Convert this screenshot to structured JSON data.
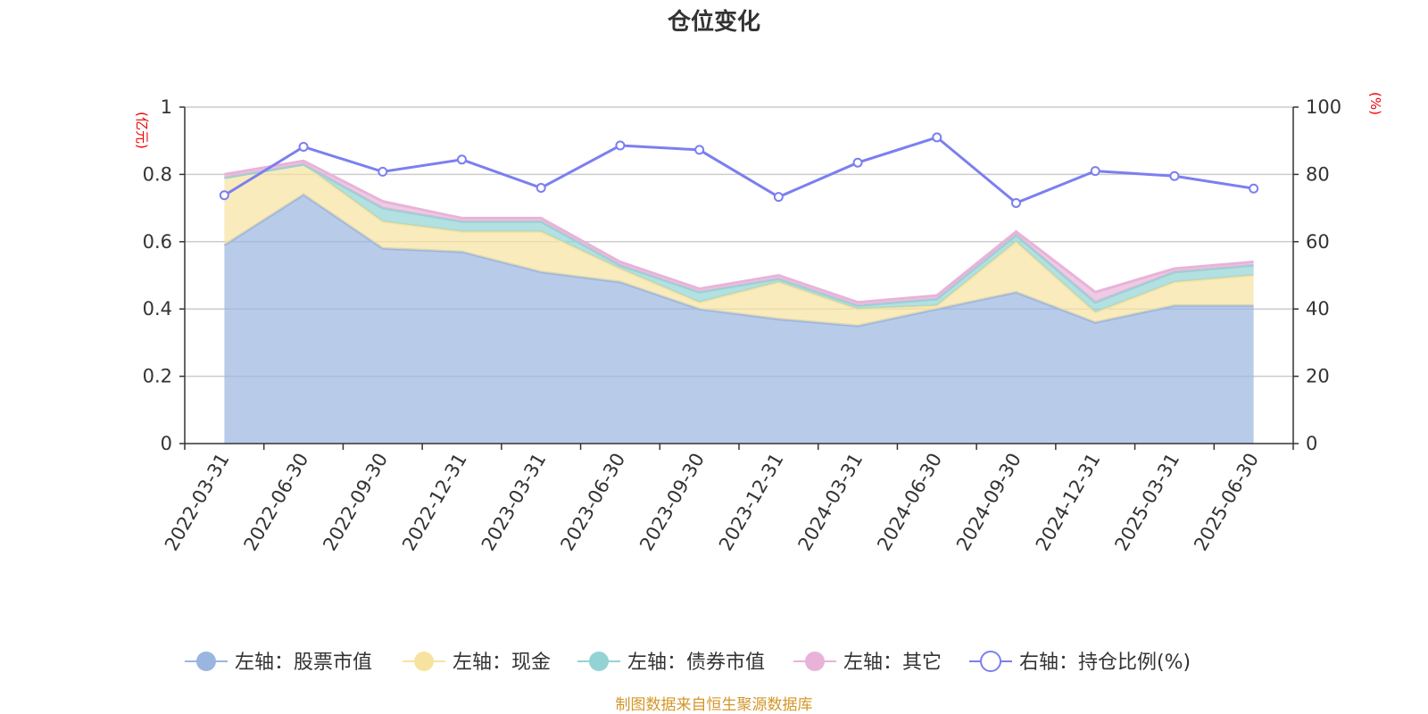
{
  "chart_data": {
    "type": "area",
    "title": "仓位变化",
    "x": [
      "2022-03-31",
      "2022-06-30",
      "2022-09-30",
      "2022-12-31",
      "2023-03-31",
      "2023-06-30",
      "2023-09-30",
      "2023-12-31",
      "2024-03-31",
      "2024-06-30",
      "2024-09-30",
      "2024-12-31",
      "2025-03-31",
      "2025-06-30"
    ],
    "left_axis": {
      "unit": "(亿元)",
      "ylim": [
        0,
        1
      ],
      "ticks": [
        "0",
        "0.2",
        "0.4",
        "0.6",
        "0.8",
        "1"
      ]
    },
    "right_axis": {
      "unit": "(%)",
      "ylim": [
        0,
        100
      ],
      "ticks": [
        "0",
        "20",
        "40",
        "60",
        "80",
        "100"
      ]
    },
    "stacked": true,
    "series": [
      {
        "name": "左轴：股票市值",
        "axis": "left",
        "type": "area",
        "color": "#9ab5e0",
        "values": [
          0.59,
          0.74,
          0.58,
          0.57,
          0.51,
          0.48,
          0.4,
          0.37,
          0.35,
          0.4,
          0.45,
          0.36,
          0.41,
          0.41
        ]
      },
      {
        "name": "左轴：现金",
        "axis": "left",
        "type": "area",
        "color": "#f7e3a0",
        "values": [
          0.2,
          0.09,
          0.08,
          0.06,
          0.12,
          0.04,
          0.02,
          0.11,
          0.05,
          0.01,
          0.15,
          0.03,
          0.07,
          0.09
        ]
      },
      {
        "name": "左轴：债券市值",
        "axis": "left",
        "type": "area",
        "color": "#93d3d4",
        "values": [
          0,
          0,
          0.04,
          0.03,
          0.03,
          0.01,
          0.03,
          0.01,
          0.01,
          0.02,
          0.02,
          0.03,
          0.03,
          0.03
        ]
      },
      {
        "name": "左轴：其它",
        "axis": "left",
        "type": "area",
        "color": "#e8b3d9",
        "values": [
          0.01,
          0.01,
          0.02,
          0.01,
          0.01,
          0.01,
          0.01,
          0.01,
          0.01,
          0.01,
          0.01,
          0.03,
          0.01,
          0.01
        ]
      },
      {
        "name": "右轴：持仓比例(%)",
        "axis": "right",
        "type": "line",
        "color": "#7b7ff0",
        "values": [
          73.8,
          88.2,
          80.8,
          84.4,
          76.0,
          88.6,
          87.3,
          73.3,
          83.5,
          91.0,
          71.5,
          81.0,
          79.5,
          75.8
        ]
      }
    ],
    "grid": true,
    "legend_position": "bottom"
  },
  "source_note": "制图数据来自恒生聚源数据库"
}
